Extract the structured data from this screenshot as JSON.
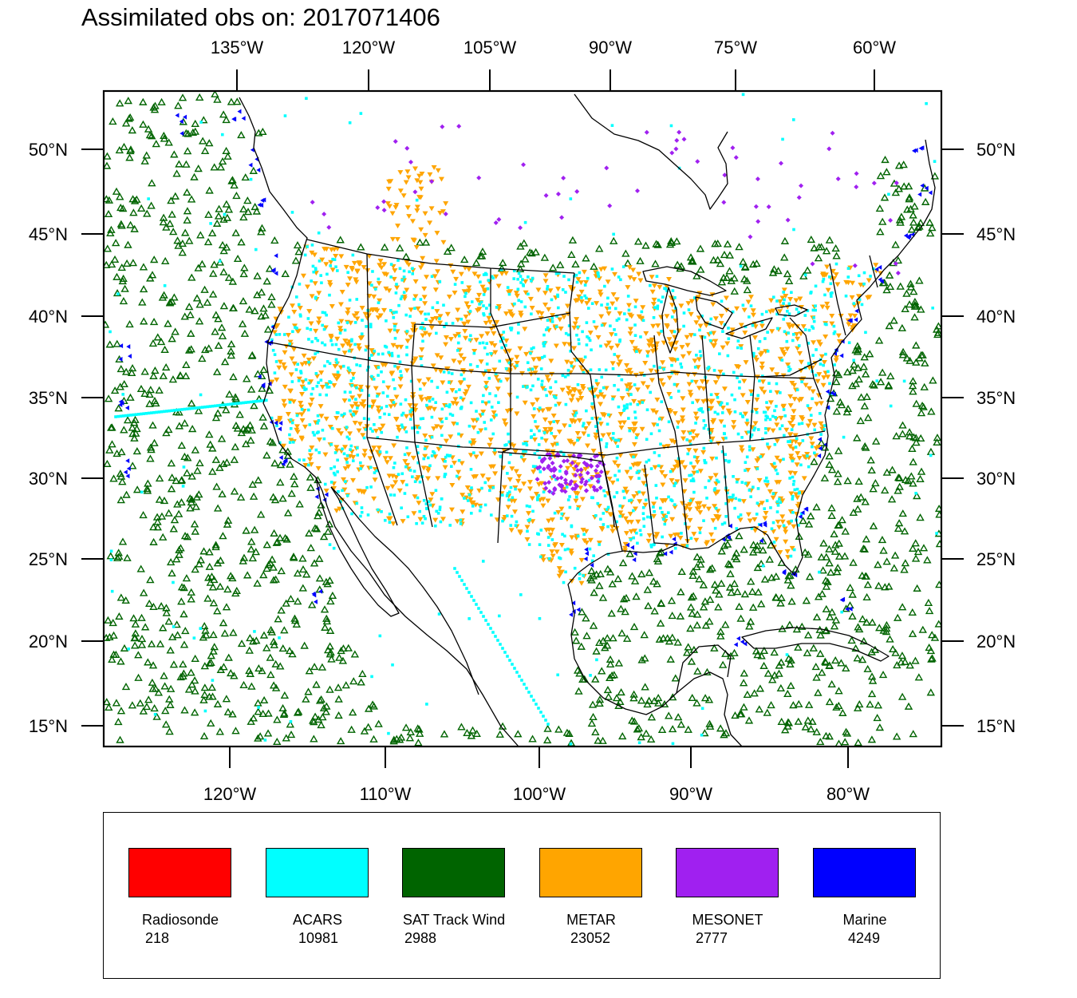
{
  "title": "Assimilated obs on: 2017071406",
  "map": {
    "top_lon_ticks": [
      "135°W",
      "120°W",
      "105°W",
      "90°W",
      "75°W",
      "60°W"
    ],
    "bottom_lon_ticks": [
      "120°W",
      "110°W",
      "100°W",
      "90°W",
      "80°W"
    ],
    "lat_ticks": [
      "50°N",
      "45°N",
      "40°N",
      "35°N",
      "30°N",
      "25°N",
      "20°N",
      "15°N"
    ]
  },
  "legend": [
    {
      "name": "Radiosonde",
      "count": "218",
      "color": "#ff0000"
    },
    {
      "name": "ACARS",
      "count": "10981",
      "color": "#00ffff"
    },
    {
      "name": "SAT Track Wind",
      "count": "2988",
      "color": "#006400"
    },
    {
      "name": "METAR",
      "count": "23052",
      "color": "#ffa500"
    },
    {
      "name": "MESONET",
      "count": "2777",
      "color": "#a020f0"
    },
    {
      "name": "Marine",
      "count": "4249",
      "color": "#0000ff"
    }
  ],
  "colors": {
    "radiosonde": "#ff0000",
    "acars": "#00ffff",
    "sat_track_wind": "#006400",
    "metar": "#ffa500",
    "mesonet": "#a020f0",
    "marine": "#0000ff"
  }
}
